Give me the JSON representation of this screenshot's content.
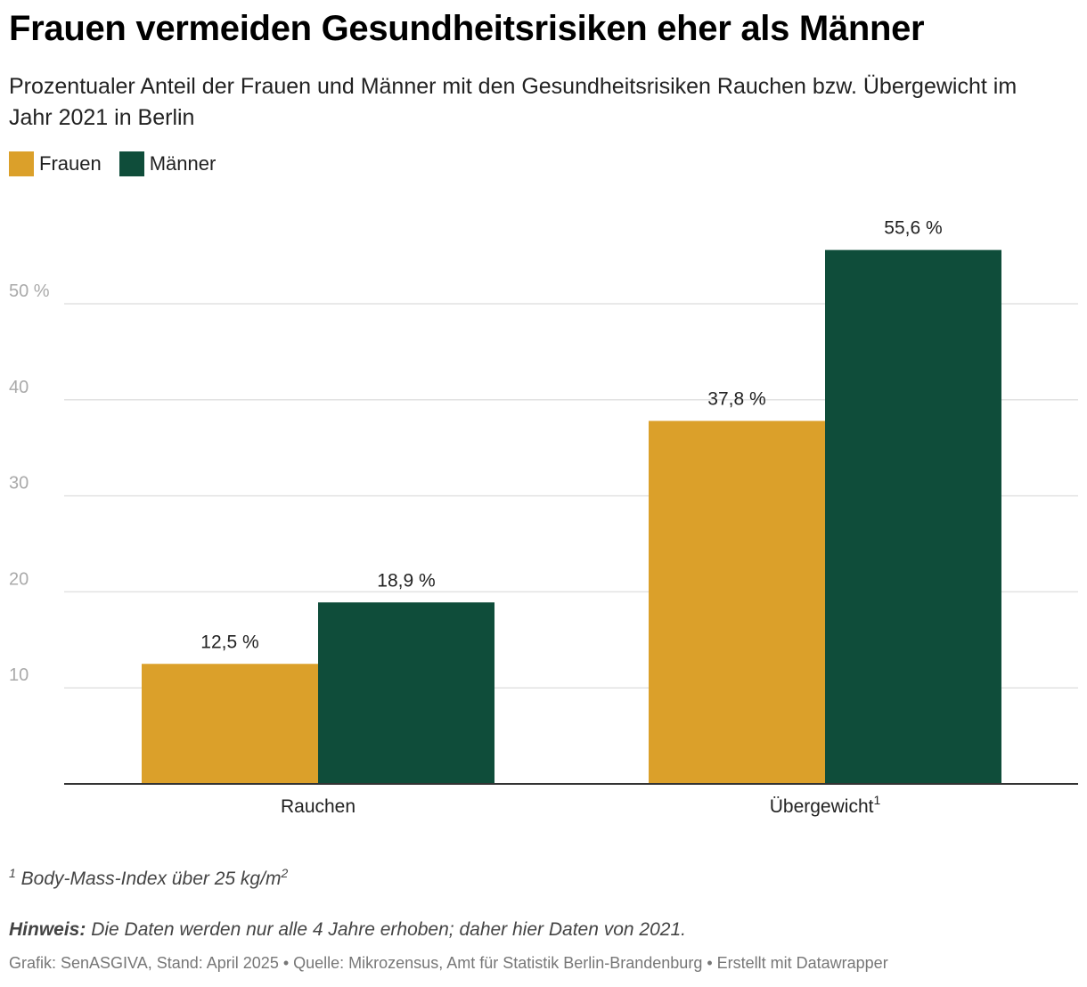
{
  "header": {
    "title": "Frauen vermeiden Gesundheitsrisiken eher als Männer",
    "subtitle": "Prozentualer Anteil der Frauen und Männer mit den Gesundheitsrisiken Rauchen bzw. Übergewicht im Jahr 2021 in Berlin"
  },
  "legend": [
    {
      "label": "Frauen",
      "color": "#dba02a"
    },
    {
      "label": "Männer",
      "color": "#0f4d3a"
    }
  ],
  "chart_data": {
    "type": "bar",
    "title": "Frauen vermeiden Gesundheitsrisiken eher als Männer",
    "categories": [
      "Rauchen",
      "Übergewicht"
    ],
    "category_superscripts": [
      "",
      "1"
    ],
    "series": [
      {
        "name": "Frauen",
        "color": "#dba02a",
        "values": [
          12.5,
          37.8
        ],
        "labels": [
          "12,5 %",
          "37,8 %"
        ]
      },
      {
        "name": "Männer",
        "color": "#0f4d3a",
        "values": [
          18.9,
          55.6
        ],
        "labels": [
          "18,9 %",
          "55,6 %"
        ]
      }
    ],
    "yticks": [
      10,
      20,
      30,
      40,
      50
    ],
    "ytick_labels": [
      "10",
      "20",
      "30",
      "40",
      "50 %"
    ],
    "ylim": [
      0,
      58
    ],
    "xlabel": "",
    "ylabel": "",
    "grid": true
  },
  "footnote": {
    "marker": "1",
    "text": "Body-Mass-Index über 25 kg/m",
    "exponent": "2"
  },
  "hint": {
    "label": "Hinweis:",
    "text": "Die Daten werden nur alle 4 Jahre erhoben; daher hier Daten von 2021."
  },
  "source": "Grafik: SenASGIVA, Stand: April 2025 • Quelle: Mikrozensus, Amt für Statistik Berlin-Brandenburg • Erstellt mit Datawrapper"
}
